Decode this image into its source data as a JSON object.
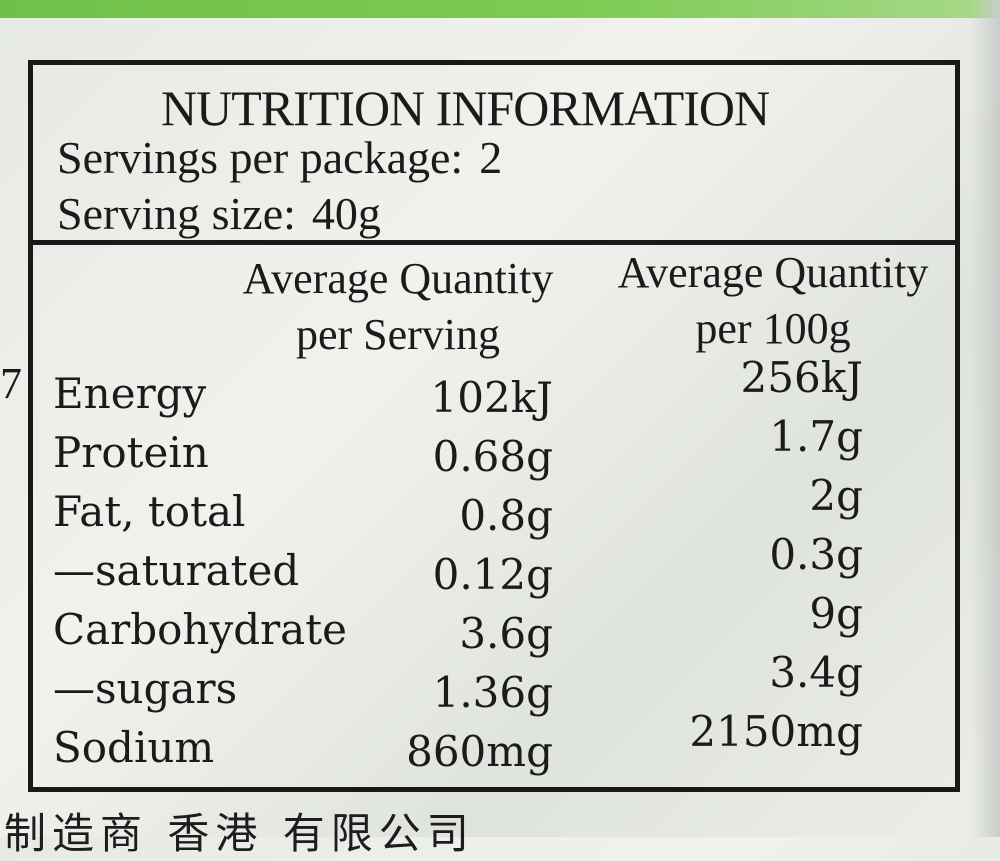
{
  "label": {
    "title": "NUTRITION INFORMATION",
    "servings_per_package_label": "Servings per package:",
    "servings_per_package_value": "2",
    "serving_size_label": "Serving size:",
    "serving_size_value": "40g",
    "col_serving_line1": "Average Quantity",
    "col_serving_line2": "per Serving",
    "col_100g_line1": "Average Quantity",
    "col_100g_line2": "per 100g",
    "rows": [
      {
        "name": "Energy",
        "per_serving": "102kJ",
        "per_100g": "256kJ"
      },
      {
        "name": "Protein",
        "per_serving": "0.68g",
        "per_100g": "1.7g"
      },
      {
        "name": "Fat, total",
        "per_serving": "0.8g",
        "per_100g": "2g"
      },
      {
        "name": "—saturated",
        "per_serving": "0.12g",
        "per_100g": "0.3g"
      },
      {
        "name": "Carbohydrate",
        "per_serving": "3.6g",
        "per_100g": "9g"
      },
      {
        "name": "—sugars",
        "per_serving": "1.36g",
        "per_100g": "3.4g"
      },
      {
        "name": "Sodium",
        "per_serving": "860mg",
        "per_100g": "2150mg"
      }
    ]
  },
  "margin_digit": "7",
  "footer_text": "制造商 香港 有限公司"
}
